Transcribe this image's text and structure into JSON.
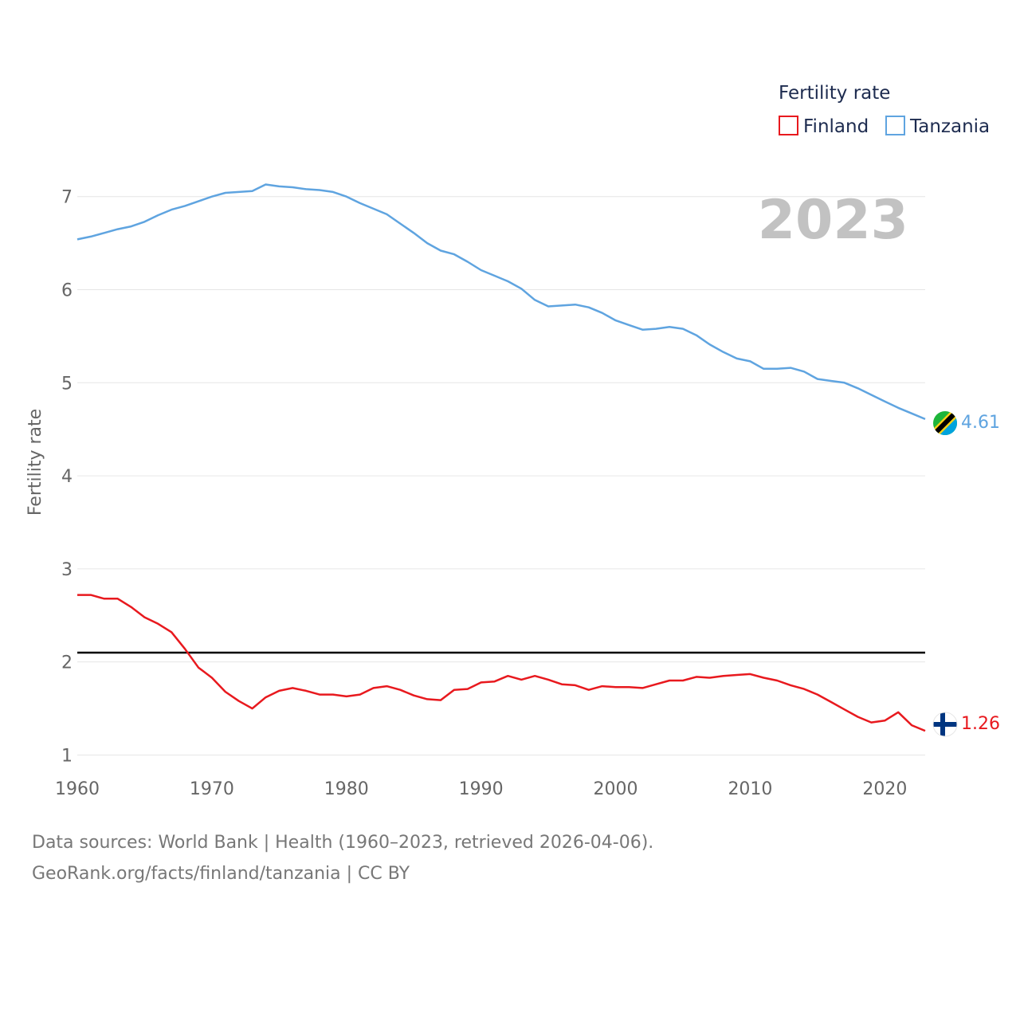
{
  "chart_data": {
    "type": "line",
    "title": "Fertility rate",
    "big_year_label": "2023",
    "xlabel": "",
    "ylabel": "Fertility rate",
    "xlim": [
      1960,
      2023
    ],
    "ylim": [
      0.85,
      7.4
    ],
    "x_ticks": [
      1960,
      1970,
      1980,
      1990,
      2000,
      2010,
      2020
    ],
    "y_ticks": [
      1,
      2,
      3,
      4,
      5,
      6,
      7
    ],
    "grid": true,
    "legend": {
      "title": "Fertility rate",
      "placement": "top-right"
    },
    "reference_line": {
      "y": 2.1,
      "color": "#000000",
      "label": ""
    },
    "x": [
      1960,
      1961,
      1962,
      1963,
      1964,
      1965,
      1966,
      1967,
      1968,
      1969,
      1970,
      1971,
      1972,
      1973,
      1974,
      1975,
      1976,
      1977,
      1978,
      1979,
      1980,
      1981,
      1982,
      1983,
      1984,
      1985,
      1986,
      1987,
      1988,
      1989,
      1990,
      1991,
      1992,
      1993,
      1994,
      1995,
      1996,
      1997,
      1998,
      1999,
      2000,
      2001,
      2002,
      2003,
      2004,
      2005,
      2006,
      2007,
      2008,
      2009,
      2010,
      2011,
      2012,
      2013,
      2014,
      2015,
      2016,
      2017,
      2018,
      2019,
      2020,
      2021,
      2022,
      2023
    ],
    "series": [
      {
        "name": "Finland",
        "color": "#e8191e",
        "end_value_label": "1.26",
        "flag_icon": "finland-flag-icon",
        "values": [
          2.72,
          2.72,
          2.68,
          2.68,
          2.59,
          2.48,
          2.41,
          2.32,
          2.14,
          1.94,
          1.83,
          1.68,
          1.58,
          1.5,
          1.62,
          1.69,
          1.72,
          1.69,
          1.65,
          1.65,
          1.63,
          1.65,
          1.72,
          1.74,
          1.7,
          1.64,
          1.6,
          1.59,
          1.7,
          1.71,
          1.78,
          1.79,
          1.85,
          1.81,
          1.85,
          1.81,
          1.76,
          1.75,
          1.7,
          1.74,
          1.73,
          1.73,
          1.72,
          1.76,
          1.8,
          1.8,
          1.84,
          1.83,
          1.85,
          1.86,
          1.87,
          1.83,
          1.8,
          1.75,
          1.71,
          1.65,
          1.57,
          1.49,
          1.41,
          1.35,
          1.37,
          1.46,
          1.32,
          1.26
        ]
      },
      {
        "name": "Tanzania",
        "color": "#5fa4e0",
        "end_value_label": "4.61",
        "flag_icon": "tanzania-flag-icon",
        "values": [
          6.54,
          6.57,
          6.61,
          6.65,
          6.68,
          6.73,
          6.8,
          6.86,
          6.9,
          6.95,
          7.0,
          7.04,
          7.05,
          7.06,
          7.13,
          7.11,
          7.1,
          7.08,
          7.07,
          7.05,
          7.0,
          6.93,
          6.87,
          6.81,
          6.71,
          6.61,
          6.5,
          6.42,
          6.38,
          6.3,
          6.21,
          6.15,
          6.09,
          6.01,
          5.89,
          5.82,
          5.83,
          5.84,
          5.81,
          5.75,
          5.67,
          5.62,
          5.57,
          5.58,
          5.6,
          5.58,
          5.51,
          5.41,
          5.33,
          5.26,
          5.23,
          5.15,
          5.15,
          5.16,
          5.12,
          5.04,
          5.02,
          5.0,
          4.94,
          4.87,
          4.8,
          4.73,
          4.67,
          4.61
        ]
      }
    ]
  },
  "footer": {
    "sources": "Data sources: World Bank | Health (1960–2023, retrieved 2026-04-06).",
    "link": "GeoRank.org/facts/finland/tanzania | CC BY"
  }
}
